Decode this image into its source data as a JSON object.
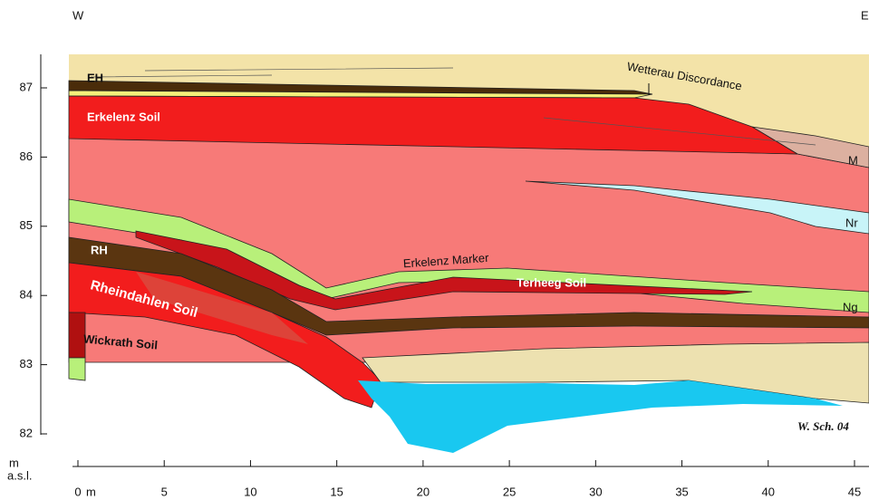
{
  "compass": {
    "west": "W",
    "east": "E"
  },
  "y_axis": {
    "ylim": [
      82,
      87
    ],
    "yticks": [
      82,
      83,
      84,
      85,
      86,
      87
    ],
    "unit": "m",
    "unit_note": "a.s.l."
  },
  "x_axis": {
    "xlim": [
      0,
      45
    ],
    "xticks": [
      0,
      5,
      10,
      15,
      20,
      25,
      30,
      35,
      40,
      45
    ],
    "unit": "m"
  },
  "labels": [
    "EH",
    "Wetterau Discordance",
    "Erkelenz Soil",
    "M",
    "Nr",
    "Erkelenz Marker",
    "Terheeg Soil",
    "RH",
    "Rheindahlen Soil",
    "Wickrath Soil",
    "Ng"
  ],
  "credit": "W. Sch. 04"
}
